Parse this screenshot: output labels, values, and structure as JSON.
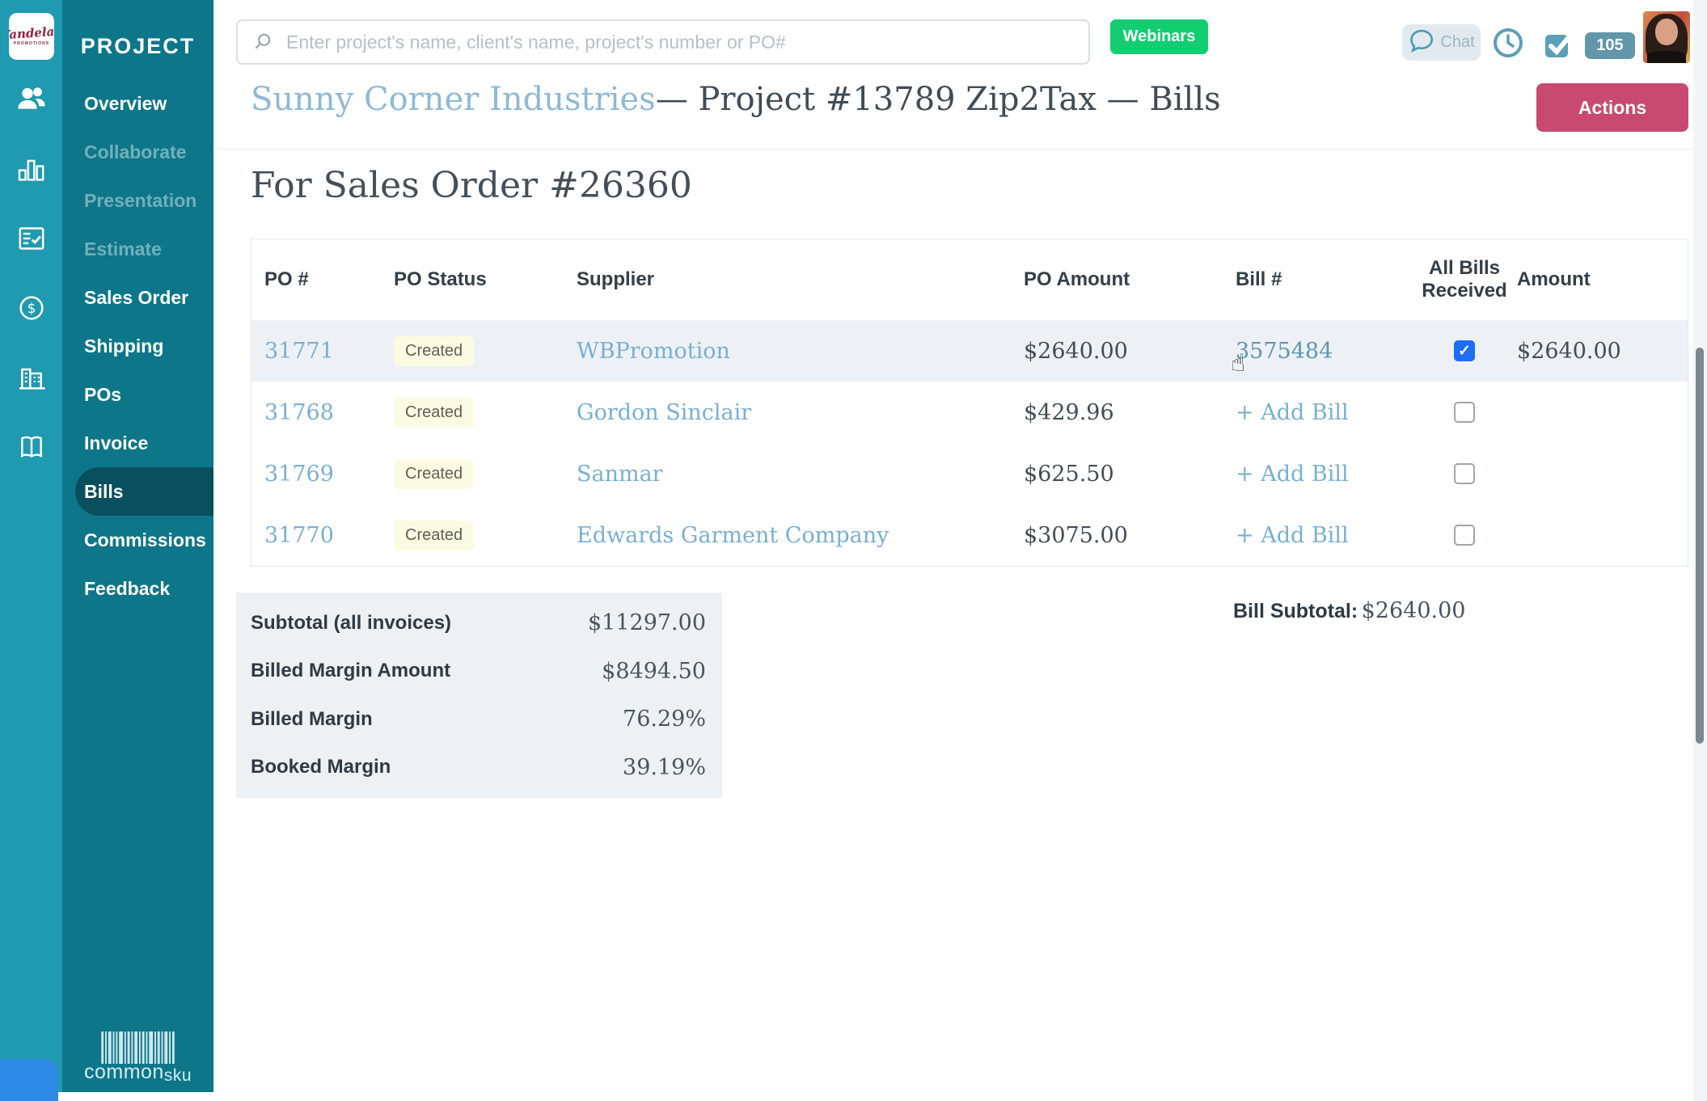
{
  "colors": {
    "rail_teal": "#1f9ab0",
    "menu_teal": "#0d7689",
    "active_teal": "#0a4f5d",
    "link_blue": "#79afd1",
    "bill_link": "#5e96b0",
    "actions_red": "#c84a70",
    "webinars_green": "#13ce70",
    "badge_yellow_bg": "#fbfbe3",
    "row_highlight": "#edf1f5",
    "summary_bg": "#edf1f4",
    "checkbox_blue": "#1e6ef5",
    "count_badge_bg": "#6296ab",
    "bottom_blue": "#2e89e5"
  },
  "brand": {
    "name": "Vandelay",
    "tagline": "PROMOTIONS",
    "footer_logo_common": "common",
    "footer_logo_sku": "sku"
  },
  "icon_rail": [
    "users",
    "bar-chart",
    "order-form",
    "dollar",
    "company",
    "catalog"
  ],
  "sidebar": {
    "title": "PROJECT",
    "items": [
      {
        "label": "Overview",
        "state": "enabled"
      },
      {
        "label": "Collaborate",
        "state": "muted"
      },
      {
        "label": "Presentation",
        "state": "muted"
      },
      {
        "label": "Estimate",
        "state": "muted"
      },
      {
        "label": "Sales Order",
        "state": "enabled"
      },
      {
        "label": "Shipping",
        "state": "enabled"
      },
      {
        "label": "POs",
        "state": "enabled"
      },
      {
        "label": "Invoice",
        "state": "enabled"
      },
      {
        "label": "Bills",
        "state": "active"
      },
      {
        "label": "Commissions",
        "state": "enabled"
      },
      {
        "label": "Feedback",
        "state": "enabled"
      }
    ]
  },
  "topbar": {
    "search_placeholder": "Enter project's name, client's name, project's number or PO#",
    "webinars_label": "Webinars",
    "chat_label": "Chat",
    "notification_count": "105"
  },
  "header": {
    "client": "Sunny Corner Industries",
    "title_rest": "— Project #13789 Zip2Tax — Bills",
    "actions_label": "Actions"
  },
  "main": {
    "section_title": "For Sales Order #26360",
    "table": {
      "columns": [
        "PO #",
        "PO Status",
        "Supplier",
        "PO Amount",
        "Bill #",
        "All Bills Received",
        "Amount"
      ],
      "rows": [
        {
          "po": "31771",
          "status": "Created",
          "supplier": "WBPromotion",
          "po_amount": "$2640.00",
          "bill_label": "3575484",
          "bill_type": "bill-number",
          "all_bills_received": true,
          "amount": "$2640.00",
          "highlight": true
        },
        {
          "po": "31768",
          "status": "Created",
          "supplier": "Gordon Sinclair",
          "po_amount": "$429.96",
          "bill_label": "+ Add Bill",
          "bill_type": "add-bill",
          "all_bills_received": false,
          "amount": "",
          "highlight": false
        },
        {
          "po": "31769",
          "status": "Created",
          "supplier": "Sanmar",
          "po_amount": "$625.50",
          "bill_label": "+ Add Bill",
          "bill_type": "add-bill",
          "all_bills_received": false,
          "amount": "",
          "highlight": false
        },
        {
          "po": "31770",
          "status": "Created",
          "supplier": "Edwards Garment Company",
          "po_amount": "$3075.00",
          "bill_label": "+ Add Bill",
          "bill_type": "add-bill",
          "all_bills_received": false,
          "amount": "",
          "highlight": false
        }
      ]
    },
    "summary": {
      "rows": [
        {
          "label": "Subtotal (all invoices)",
          "value": "$11297.00"
        },
        {
          "label": "Billed Margin Amount",
          "value": "$8494.50"
        },
        {
          "label": "Billed Margin",
          "value": "76.29%"
        },
        {
          "label": "Booked Margin",
          "value": "39.19%"
        }
      ]
    },
    "bill_subtotal_label": "Bill Subtotal:",
    "bill_subtotal_value": "$2640.00"
  }
}
